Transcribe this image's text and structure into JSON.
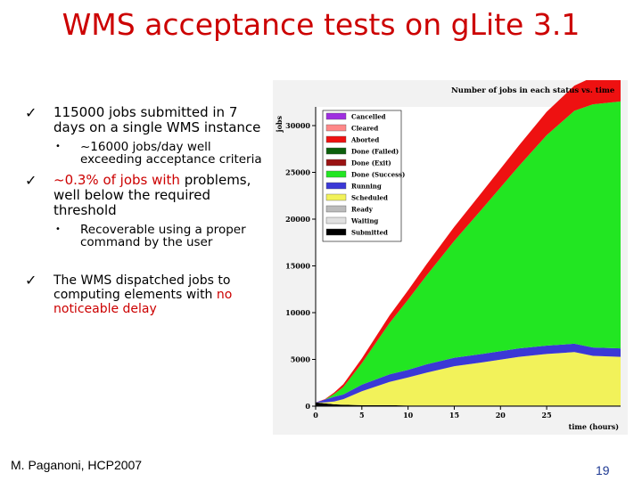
{
  "slide": {
    "title": "WMS acceptance tests on gLite 3.1",
    "footer": "M. Paganoni, HCP2007",
    "page_number": "19",
    "bullet_1": "115000 jobs submitted in 7 days on a single WMS instance",
    "bullet_1_sub_a": "~16000 jobs/day well",
    "bullet_1_sub_b": "exceeding acceptance criteria",
    "bullet_2_a": "~0.3% of jobs with",
    "bullet_2_b": "problems, well below the required threshold",
    "bullet_2_sub": "Recoverable using a proper command by the user",
    "bullet_3_a": "The WMS dispatched jobs to computing elements with",
    "bullet_3_b": "no noticeable delay",
    "check_glyph": "✓",
    "dot_glyph": "•"
  },
  "chart_data": {
    "type": "area",
    "title": "Number of jobs in each status vs. time",
    "xlabel": "time (hours)",
    "ylabel": "jobs",
    "xlim": [
      0,
      33
    ],
    "ylim": [
      0,
      32000
    ],
    "xticks": [
      0,
      5,
      10,
      15,
      20,
      25
    ],
    "yticks": [
      0,
      5000,
      10000,
      15000,
      20000,
      25000,
      30000
    ],
    "x": [
      0,
      1,
      2,
      3,
      5,
      8,
      10,
      12,
      15,
      18,
      20,
      22,
      25,
      28,
      30,
      33
    ],
    "series": [
      {
        "name": "Submitted",
        "color": "#000000",
        "values": [
          400,
          300,
          200,
          150,
          100,
          100,
          80,
          80,
          80,
          80,
          80,
          80,
          80,
          80,
          80,
          80
        ]
      },
      {
        "name": "Waiting",
        "color": "#e0e0e0",
        "values": [
          0,
          0,
          0,
          0,
          0,
          0,
          0,
          0,
          0,
          0,
          0,
          0,
          0,
          0,
          0,
          0
        ]
      },
      {
        "name": "Ready",
        "color": "#bbbbbb",
        "values": [
          0,
          0,
          0,
          0,
          0,
          0,
          0,
          0,
          0,
          0,
          0,
          0,
          0,
          0,
          0,
          0
        ]
      },
      {
        "name": "Scheduled",
        "color": "#f2f25a",
        "values": [
          0,
          100,
          300,
          600,
          1500,
          2500,
          3000,
          3500,
          4200,
          4600,
          4900,
          5200,
          5500,
          5700,
          5300,
          5200
        ]
      },
      {
        "name": "Running",
        "color": "#3b38d6",
        "values": [
          0,
          300,
          500,
          500,
          700,
          800,
          800,
          900,
          900,
          900,
          900,
          900,
          900,
          900,
          900,
          900
        ]
      },
      {
        "name": "Done (Success)",
        "color": "#22e622",
        "values": [
          0,
          0,
          300,
          800,
          2300,
          5500,
          7500,
          9500,
          12500,
          15500,
          17500,
          19500,
          22500,
          24900,
          26000,
          26400
        ]
      },
      {
        "name": "Done (Exit)",
        "color": "#9a1212",
        "values": [
          0,
          0,
          0,
          0,
          0,
          0,
          0,
          0,
          0,
          0,
          0,
          0,
          0,
          0,
          0,
          0
        ]
      },
      {
        "name": "Done (Failed)",
        "color": "#0c5f0c",
        "values": [
          0,
          0,
          0,
          0,
          0,
          0,
          0,
          0,
          0,
          0,
          0,
          0,
          0,
          0,
          0,
          0
        ]
      },
      {
        "name": "Aborted",
        "color": "#ee1111",
        "values": [
          0,
          50,
          150,
          300,
          500,
          800,
          1000,
          1200,
          1500,
          1800,
          2000,
          2200,
          2500,
          2700,
          2900,
          3000
        ]
      },
      {
        "name": "Cleared",
        "color": "#ff8888",
        "values": [
          0,
          0,
          0,
          0,
          0,
          0,
          0,
          0,
          0,
          0,
          0,
          0,
          0,
          0,
          0,
          0
        ]
      },
      {
        "name": "Cancelled",
        "color": "#9f2fe0",
        "values": [
          0,
          0,
          0,
          0,
          0,
          0,
          0,
          0,
          0,
          0,
          0,
          0,
          0,
          0,
          0,
          0
        ]
      }
    ],
    "legend_order": [
      "Cancelled",
      "Cleared",
      "Aborted",
      "Done (Failed)",
      "Done (Exit)",
      "Done (Success)",
      "Running",
      "Scheduled",
      "Ready",
      "Waiting",
      "Submitted"
    ],
    "legend_placement": "top-left",
    "grid": false
  }
}
